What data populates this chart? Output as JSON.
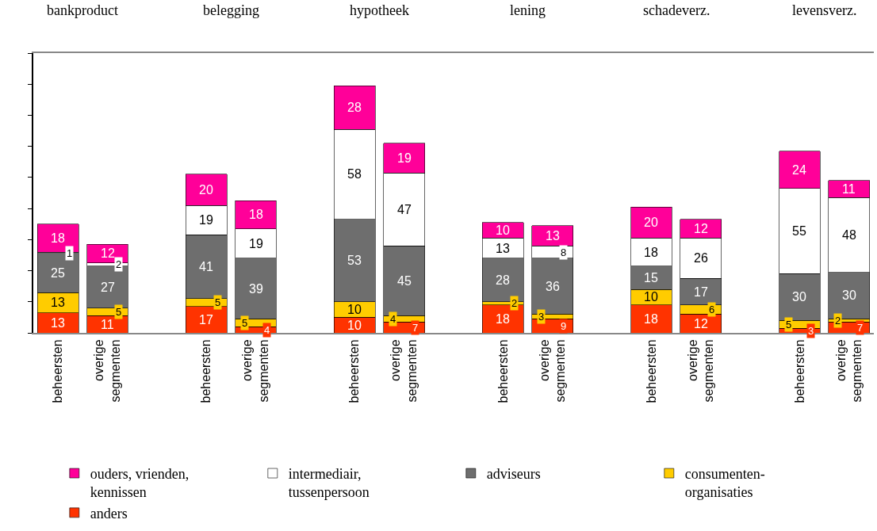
{
  "chart_data": {
    "type": "bar",
    "stacked": true,
    "data_labels": true,
    "legend": "bottom",
    "grid": false,
    "categories": [
      "beheersten",
      "overige segmenten",
      null,
      "beheersten",
      "overige segmenten",
      null,
      "beheersten",
      "overige segmenten",
      null,
      "beheersten",
      "overige segmenten",
      null,
      "beheersten",
      "overige segmenten",
      null,
      "beheersten",
      "overige segmenten"
    ],
    "ylim": [
      0,
      180
    ],
    "yticks": [
      {
        "value": 0,
        "label": null
      },
      {
        "value": 20,
        "label": null
      },
      {
        "value": 40,
        "label": null
      },
      {
        "value": 60,
        "label": null
      },
      {
        "value": 80,
        "label": null
      },
      {
        "value": 100,
        "label": null
      },
      {
        "value": 120,
        "label": null
      },
      {
        "value": 140,
        "label": null
      },
      {
        "value": 160,
        "label": null
      },
      {
        "value": 180,
        "label": null
      }
    ],
    "tick_labels": "x",
    "annotations": [
      "bankproduct",
      "belegging",
      "hypotheek",
      "lening",
      "schadeverz.",
      "levensverz."
    ],
    "series": [
      {
        "name": "anders",
        "color": "#ff3300",
        "values": [
          13,
          11,
          null,
          17,
          4,
          null,
          10,
          7,
          null,
          18,
          9,
          null,
          18,
          12,
          null,
          3,
          7
        ]
      },
      {
        "name": "consumenten-organisaties",
        "color": "#ffcc00",
        "values": [
          13,
          5,
          null,
          5,
          5,
          null,
          10,
          4,
          null,
          2,
          3,
          null,
          10,
          6,
          null,
          5,
          2
        ]
      },
      {
        "name": "adviseurs",
        "color": "#6e6e6e",
        "values": [
          25,
          27,
          null,
          41,
          39,
          null,
          53,
          45,
          null,
          28,
          36,
          null,
          15,
          17,
          null,
          30,
          30
        ]
      },
      {
        "name": "intermediair, tussenpersoon",
        "color": "#ffffff",
        "values": [
          1,
          2,
          null,
          19,
          19,
          null,
          58,
          47,
          null,
          13,
          8,
          null,
          18,
          26,
          null,
          55,
          48
        ]
      },
      {
        "name": "ouders, vrienden, kennissen",
        "color": "#ff0099",
        "values": [
          18,
          12,
          null,
          20,
          18,
          null,
          28,
          19,
          null,
          10,
          13,
          null,
          20,
          12,
          null,
          24,
          11
        ]
      }
    ]
  }
}
